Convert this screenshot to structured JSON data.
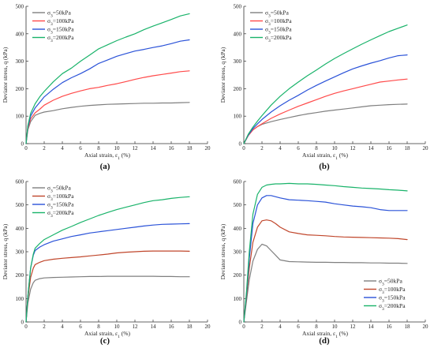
{
  "chart_data": [
    {
      "type": "line",
      "panel_label": "(a)",
      "xlabel": "Axial strain, ε1 (%)",
      "ylabel": "Deviator stress, q (kPa)",
      "xlim": [
        0,
        20
      ],
      "ylim": [
        0,
        500
      ],
      "xticks": [
        0,
        2,
        4,
        6,
        8,
        10,
        12,
        14,
        16,
        18,
        20
      ],
      "yticks": [
        0,
        100,
        200,
        300,
        400,
        500
      ],
      "legend_position": "top-left",
      "series": [
        {
          "name": "σ3=50kPa",
          "color": "#7f7f7f",
          "x": [
            0,
            0.2,
            0.5,
            1,
            1.5,
            2,
            3,
            4,
            5,
            6,
            7,
            8,
            9,
            10,
            11,
            12,
            13,
            14,
            15,
            16,
            17,
            18
          ],
          "y": [
            0,
            50,
            80,
            103,
            110,
            115,
            120,
            127,
            132,
            136,
            139,
            141,
            143,
            144,
            145,
            146,
            147,
            147,
            148,
            148,
            149,
            150
          ]
        },
        {
          "name": "σ3=100kPa",
          "color": "#ff4a4a",
          "x": [
            0,
            0.2,
            0.5,
            1,
            1.5,
            2,
            3,
            4,
            5,
            6,
            7,
            8,
            9,
            10,
            11,
            12,
            13,
            14,
            15,
            16,
            17,
            18
          ],
          "y": [
            0,
            55,
            90,
            112,
            125,
            140,
            158,
            172,
            183,
            192,
            200,
            205,
            212,
            218,
            226,
            234,
            241,
            247,
            252,
            257,
            262,
            265
          ]
        },
        {
          "name": "σ3=150kPa",
          "color": "#2a52d8",
          "x": [
            0,
            0.2,
            0.5,
            1,
            1.5,
            2,
            3,
            4,
            5,
            6,
            7,
            8,
            9,
            10,
            11,
            12,
            13,
            14,
            15,
            16,
            17,
            18
          ],
          "y": [
            0,
            60,
            100,
            130,
            150,
            170,
            198,
            222,
            240,
            255,
            272,
            292,
            305,
            318,
            328,
            337,
            343,
            350,
            356,
            364,
            373,
            378
          ]
        },
        {
          "name": "σ3=200kPa",
          "color": "#19b36a",
          "x": [
            0,
            0.2,
            0.5,
            1,
            1.5,
            2,
            3,
            4,
            5,
            6,
            7,
            8,
            9,
            10,
            11,
            12,
            13,
            14,
            15,
            16,
            17,
            18
          ],
          "y": [
            0,
            65,
            110,
            145,
            170,
            190,
            225,
            255,
            275,
            300,
            322,
            345,
            360,
            375,
            388,
            400,
            415,
            428,
            440,
            452,
            465,
            473
          ]
        }
      ]
    },
    {
      "type": "line",
      "panel_label": "(b)",
      "xlabel": "Axial strain, ε1 (%)",
      "ylabel": "Deviator stress, q (kPa)",
      "xlim": [
        0,
        20
      ],
      "ylim": [
        0,
        500
      ],
      "xticks": [
        0,
        2,
        4,
        6,
        8,
        10,
        12,
        14,
        16,
        18,
        20
      ],
      "yticks": [
        0,
        100,
        200,
        300,
        400,
        500
      ],
      "legend_position": "top-left",
      "series": [
        {
          "name": "σ3=50kPa",
          "color": "#7f7f7f",
          "x": [
            0,
            0.5,
            1,
            1.5,
            2,
            3,
            4,
            5,
            6,
            7,
            8,
            9,
            10,
            11,
            12,
            13,
            14,
            15,
            16,
            17,
            18
          ],
          "y": [
            0,
            30,
            50,
            62,
            70,
            80,
            88,
            95,
            102,
            108,
            113,
            118,
            122,
            126,
            130,
            134,
            138,
            140,
            142,
            143,
            144
          ]
        },
        {
          "name": "σ3=100kPa",
          "color": "#ff4a4a",
          "x": [
            0,
            0.5,
            1,
            1.5,
            2,
            3,
            4,
            5,
            6,
            7,
            8,
            9,
            10,
            11,
            12,
            13,
            14,
            15,
            16,
            17,
            18
          ],
          "y": [
            0,
            30,
            50,
            62,
            72,
            92,
            108,
            122,
            136,
            148,
            160,
            172,
            183,
            192,
            200,
            208,
            216,
            224,
            228,
            232,
            235
          ]
        },
        {
          "name": "σ3=150kPa",
          "color": "#2a52d8",
          "x": [
            0,
            0.5,
            1,
            1.5,
            2,
            3,
            4,
            5,
            6,
            7,
            8,
            9,
            10,
            11,
            12,
            13,
            14,
            15,
            16,
            17,
            18
          ],
          "y": [
            0,
            32,
            55,
            72,
            88,
            115,
            138,
            158,
            176,
            195,
            212,
            228,
            243,
            258,
            272,
            283,
            293,
            302,
            312,
            320,
            323
          ]
        },
        {
          "name": "σ3=200kPa",
          "color": "#19b36a",
          "x": [
            0,
            0.5,
            1,
            1.5,
            2,
            3,
            4,
            5,
            6,
            7,
            8,
            9,
            10,
            11,
            12,
            13,
            14,
            15,
            16,
            17,
            18
          ],
          "y": [
            0,
            35,
            60,
            82,
            102,
            140,
            172,
            200,
            224,
            247,
            268,
            290,
            310,
            328,
            345,
            362,
            378,
            393,
            408,
            420,
            432
          ]
        }
      ]
    },
    {
      "type": "line",
      "panel_label": "(c)",
      "xlabel": "Axial strain, ε1 (%)",
      "ylabel": "Deviator stress, q (kPa)",
      "xlim": [
        0,
        20
      ],
      "ylim": [
        0,
        600
      ],
      "xticks": [
        0,
        2,
        4,
        6,
        8,
        10,
        12,
        14,
        16,
        18,
        20
      ],
      "yticks": [
        0,
        100,
        200,
        300,
        400,
        500,
        600
      ],
      "legend_position": "top-left",
      "series": [
        {
          "name": "σ3=50kPa",
          "color": "#7f7f7f",
          "x": [
            0,
            0.2,
            0.5,
            0.8,
            1,
            1.5,
            2,
            3,
            4,
            5,
            6,
            7,
            8,
            9,
            10,
            11,
            12,
            13,
            14,
            15,
            16,
            17,
            18
          ],
          "y": [
            0,
            80,
            140,
            168,
            178,
            185,
            188,
            190,
            191,
            192,
            193,
            194,
            194,
            195,
            195,
            195,
            195,
            195,
            195,
            194,
            194,
            193,
            193
          ]
        },
        {
          "name": "σ3=100kPa",
          "color": "#c0462b",
          "x": [
            0,
            0.2,
            0.5,
            0.8,
            1,
            1.5,
            2,
            3,
            4,
            5,
            6,
            7,
            8,
            9,
            10,
            11,
            12,
            13,
            14,
            15,
            16,
            17,
            18
          ],
          "y": [
            0,
            100,
            190,
            230,
            245,
            255,
            262,
            268,
            272,
            275,
            278,
            282,
            286,
            290,
            295,
            298,
            300,
            302,
            303,
            303,
            303,
            303,
            302
          ]
        },
        {
          "name": "σ3=150kPa",
          "color": "#2a52d8",
          "x": [
            0,
            0.2,
            0.5,
            0.8,
            1,
            1.5,
            2,
            3,
            4,
            5,
            6,
            7,
            8,
            9,
            10,
            11,
            12,
            13,
            14,
            15,
            16,
            17,
            18
          ],
          "y": [
            0,
            110,
            230,
            285,
            305,
            320,
            330,
            345,
            355,
            365,
            372,
            380,
            385,
            390,
            395,
            400,
            405,
            410,
            414,
            417,
            418,
            419,
            420
          ]
        },
        {
          "name": "σ3=200kPa",
          "color": "#19b36a",
          "x": [
            0,
            0.2,
            0.5,
            0.8,
            1,
            1.5,
            2,
            3,
            4,
            5,
            6,
            7,
            8,
            9,
            10,
            11,
            12,
            13,
            14,
            15,
            16,
            17,
            18
          ],
          "y": [
            0,
            110,
            230,
            290,
            315,
            335,
            352,
            372,
            392,
            408,
            425,
            440,
            455,
            468,
            480,
            490,
            500,
            510,
            518,
            522,
            528,
            532,
            535
          ]
        }
      ]
    },
    {
      "type": "line",
      "panel_label": "(d)",
      "xlabel": "Axial strain, ε1 (%)",
      "ylabel": "Deviator stress, q (kPa)",
      "xlim": [
        0,
        20
      ],
      "ylim": [
        0,
        600
      ],
      "xticks": [
        0,
        2,
        4,
        6,
        8,
        10,
        12,
        14,
        16,
        18,
        20
      ],
      "yticks": [
        0,
        100,
        200,
        300,
        400,
        500,
        600
      ],
      "legend_position": "bottom-right",
      "series": [
        {
          "name": "σ3=50kPa",
          "color": "#7f7f7f",
          "x": [
            0,
            0.3,
            0.6,
            1,
            1.5,
            2,
            2.5,
            3,
            3.5,
            4,
            5,
            6,
            7,
            8,
            9,
            10,
            11,
            12,
            13,
            14,
            15,
            16,
            17,
            18
          ],
          "y": [
            0,
            90,
            180,
            260,
            310,
            332,
            325,
            305,
            285,
            265,
            258,
            257,
            256,
            255,
            255,
            254,
            254,
            253,
            253,
            252,
            252,
            251,
            251,
            250
          ]
        },
        {
          "name": "σ3=100kPa",
          "color": "#c0462b",
          "x": [
            0,
            0.3,
            0.6,
            1,
            1.5,
            2,
            2.5,
            3,
            3.5,
            4,
            5,
            6,
            7,
            8,
            9,
            10,
            11,
            12,
            13,
            14,
            15,
            16,
            17,
            18
          ],
          "y": [
            0,
            110,
            230,
            340,
            405,
            432,
            436,
            432,
            420,
            405,
            385,
            378,
            372,
            370,
            368,
            365,
            363,
            362,
            361,
            360,
            359,
            358,
            356,
            352
          ]
        },
        {
          "name": "σ3=150kPa",
          "color": "#2a52d8",
          "x": [
            0,
            0.3,
            0.6,
            1,
            1.5,
            2,
            2.5,
            3,
            3.5,
            4,
            5,
            6,
            7,
            8,
            9,
            10,
            11,
            12,
            13,
            14,
            15,
            16,
            17,
            18
          ],
          "y": [
            0,
            120,
            270,
            420,
            500,
            530,
            540,
            540,
            535,
            530,
            522,
            520,
            518,
            515,
            512,
            505,
            500,
            495,
            492,
            488,
            480,
            476,
            476,
            476
          ]
        },
        {
          "name": "σ3=200kPa",
          "color": "#19b36a",
          "x": [
            0,
            0.3,
            0.6,
            1,
            1.5,
            2,
            2.5,
            3,
            3.5,
            4,
            5,
            6,
            7,
            8,
            9,
            10,
            11,
            12,
            13,
            14,
            15,
            16,
            17,
            18
          ],
          "y": [
            0,
            130,
            300,
            460,
            545,
            575,
            585,
            588,
            590,
            590,
            592,
            590,
            590,
            588,
            585,
            582,
            578,
            575,
            572,
            570,
            568,
            565,
            563,
            560
          ]
        }
      ]
    }
  ]
}
